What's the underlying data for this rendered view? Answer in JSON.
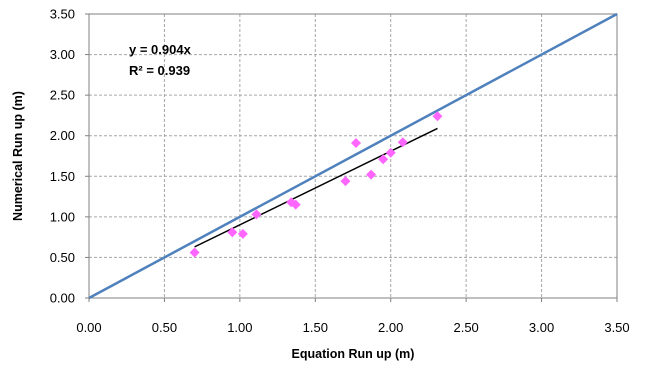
{
  "chart_data": {
    "type": "scatter",
    "xlabel": "Equation Run up (m)",
    "ylabel": "Numerical Run up (m)",
    "xlim": [
      0,
      3.5
    ],
    "ylim": [
      0,
      3.5
    ],
    "x_ticks": [
      "0.00",
      "0.50",
      "1.00",
      "1.50",
      "2.00",
      "2.50",
      "3.00",
      "3.50"
    ],
    "y_ticks": [
      "0.00",
      "0.50",
      "1.00",
      "1.50",
      "2.00",
      "2.50",
      "3.00",
      "3.50"
    ],
    "grid": true,
    "legend": "none",
    "annotations": [
      "y = 0.904x",
      "R² = 0.939"
    ],
    "series": [
      {
        "type": "scatter",
        "marker": "diamond",
        "color": "#FF66FF",
        "points": [
          {
            "x": 0.7,
            "y": 0.56
          },
          {
            "x": 0.95,
            "y": 0.81
          },
          {
            "x": 1.02,
            "y": 0.79
          },
          {
            "x": 1.11,
            "y": 1.03
          },
          {
            "x": 1.34,
            "y": 1.18
          },
          {
            "x": 1.37,
            "y": 1.15
          },
          {
            "x": 1.7,
            "y": 1.44
          },
          {
            "x": 1.77,
            "y": 1.91
          },
          {
            "x": 1.87,
            "y": 1.52
          },
          {
            "x": 1.95,
            "y": 1.71
          },
          {
            "x": 2.0,
            "y": 1.79
          },
          {
            "x": 2.08,
            "y": 1.92
          },
          {
            "x": 2.31,
            "y": 2.24
          }
        ]
      },
      {
        "type": "line",
        "color": "#000000",
        "points": [
          {
            "x": 0.7,
            "y": 0.63
          },
          {
            "x": 2.31,
            "y": 2.09
          }
        ]
      },
      {
        "type": "line",
        "color": "#4F81BD",
        "points": [
          {
            "x": 0.0,
            "y": 0.0
          },
          {
            "x": 3.5,
            "y": 3.5
          }
        ]
      }
    ]
  }
}
